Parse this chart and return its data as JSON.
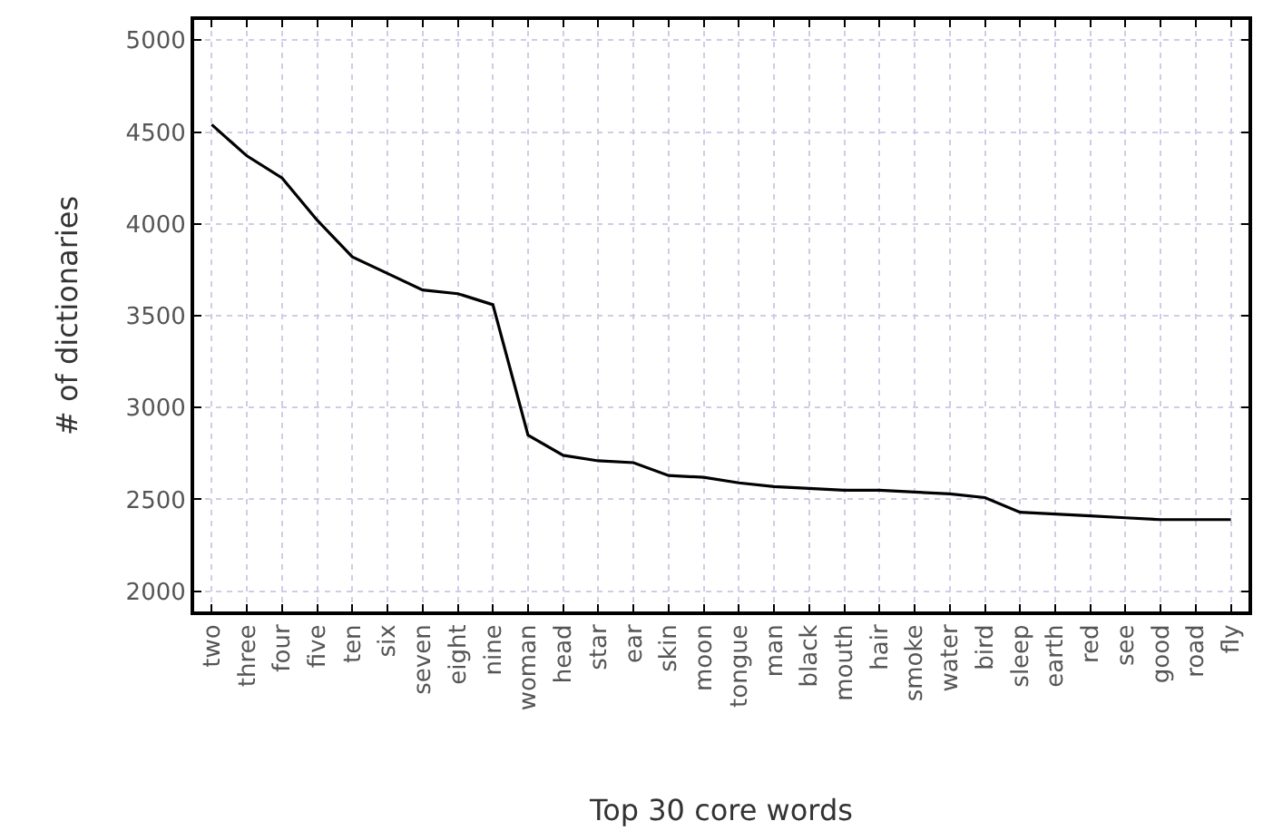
{
  "chart_data": {
    "type": "line",
    "xlabel": "Top 30 core words",
    "ylabel": "# of dictionaries",
    "categories": [
      "two",
      "three",
      "four",
      "five",
      "ten",
      "six",
      "seven",
      "eight",
      "nine",
      "woman",
      "head",
      "star",
      "ear",
      "skin",
      "moon",
      "tongue",
      "man",
      "black",
      "mouth",
      "hair",
      "smoke",
      "water",
      "bird",
      "sleep",
      "earth",
      "red",
      "see",
      "good",
      "road",
      "fly"
    ],
    "series": [
      {
        "color": "#000000",
        "values": [
          4540,
          4370,
          4250,
          4020,
          3820,
          3730,
          3640,
          3620,
          3560,
          2850,
          2740,
          2710,
          2700,
          2630,
          2620,
          2590,
          2570,
          2560,
          2550,
          2550,
          2540,
          2530,
          2510,
          2430,
          2420,
          2410,
          2400,
          2390,
          2390,
          2390
        ]
      }
    ],
    "ylim": [
      1890,
      5110
    ],
    "yticks": [
      2000,
      2500,
      3000,
      3500,
      4000,
      4500,
      5000
    ],
    "grid": true,
    "marker": "none",
    "line_style": "solid"
  }
}
